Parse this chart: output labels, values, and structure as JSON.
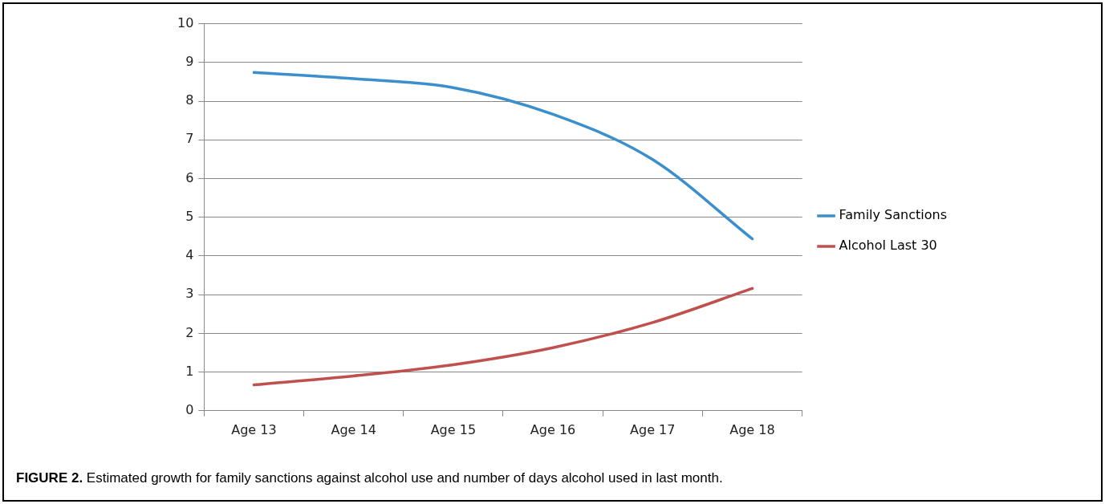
{
  "chart_data": {
    "type": "line",
    "categories": [
      "Age 13",
      "Age 14",
      "Age 15",
      "Age 16",
      "Age 17",
      "Age 18"
    ],
    "series": [
      {
        "name": "Family Sanctions",
        "color": "#3a8fcc",
        "values": [
          8.74,
          8.58,
          8.35,
          7.66,
          6.49,
          4.44
        ]
      },
      {
        "name": "Alcohol Last 30",
        "color": "#c0504d",
        "values": [
          0.67,
          0.9,
          1.19,
          1.63,
          2.28,
          3.16
        ]
      }
    ],
    "ylim": [
      0,
      10
    ],
    "yticks": [
      0,
      1,
      2,
      3,
      4,
      5,
      6,
      7,
      8,
      9,
      10
    ],
    "grid": "y",
    "legend": "right",
    "marker": "none",
    "line_style": "solid",
    "annotations": [
      "FIGURE 2.  Estimated growth for family sanctions against alcohol use and number of days alcohol used in last month."
    ]
  }
}
